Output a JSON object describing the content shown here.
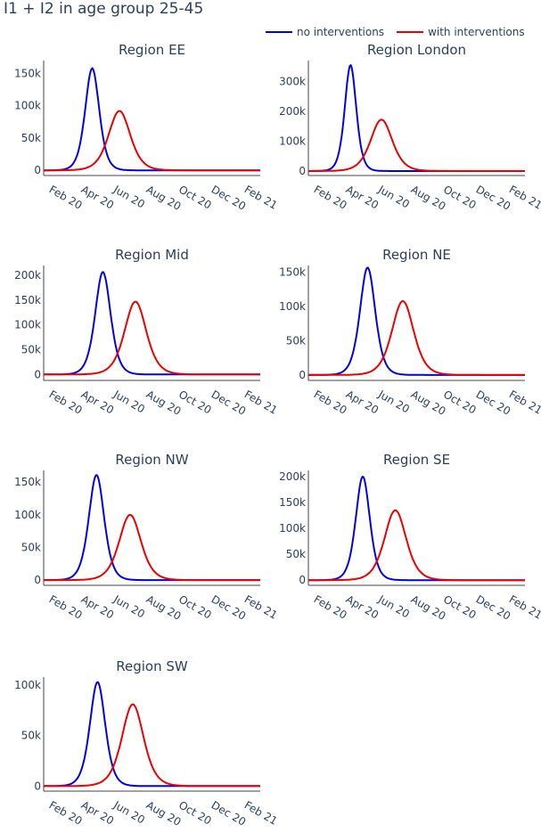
{
  "title": "I1 + I2 in age group 25-45",
  "legend": [
    {
      "name": "no interventions",
      "color": "#0000ee"
    },
    {
      "name": "with interventions",
      "color": "#ee0000"
    }
  ],
  "x_ticks": [
    "Feb 20",
    "Apr 20",
    "Jun 20",
    "Aug 20",
    "Oct 20",
    "Dec 20",
    "Feb 21"
  ],
  "chart_data": [
    {
      "type": "line",
      "title": "Region EE",
      "xlim": [
        "2020-01-20",
        "2021-03-01"
      ],
      "ylim": [
        -8000,
        170000
      ],
      "y_ticks": [
        {
          "value": 0,
          "label": "0"
        },
        {
          "value": 50000,
          "label": "50k"
        },
        {
          "value": 100000,
          "label": "100k"
        },
        {
          "value": 150000,
          "label": "150k"
        }
      ],
      "series": [
        {
          "name": "no interventions",
          "peak_date": "2020-04-20",
          "peak": 158000,
          "width_days": 11
        },
        {
          "name": "with interventions",
          "peak_date": "2020-06-10",
          "peak": 92000,
          "width_days": 17
        }
      ]
    },
    {
      "type": "line",
      "title": "Region London",
      "xlim": [
        "2020-01-20",
        "2021-03-01"
      ],
      "ylim": [
        -15000,
        370000
      ],
      "y_ticks": [
        {
          "value": 0,
          "label": "0"
        },
        {
          "value": 100000,
          "label": "100k"
        },
        {
          "value": 200000,
          "label": "200k"
        },
        {
          "value": 300000,
          "label": "300k"
        }
      ],
      "series": [
        {
          "name": "no interventions",
          "peak_date": "2020-04-08",
          "peak": 355000,
          "width_days": 9
        },
        {
          "name": "with interventions",
          "peak_date": "2020-06-05",
          "peak": 172000,
          "width_days": 17
        }
      ]
    },
    {
      "type": "line",
      "title": "Region Mid",
      "xlim": [
        "2020-01-20",
        "2021-03-01"
      ],
      "ylim": [
        -12000,
        220000
      ],
      "y_ticks": [
        {
          "value": 0,
          "label": "0"
        },
        {
          "value": 50000,
          "label": "50k"
        },
        {
          "value": 100000,
          "label": "100k"
        },
        {
          "value": 150000,
          "label": "150k"
        },
        {
          "value": 200000,
          "label": "200k"
        }
      ],
      "series": [
        {
          "name": "no interventions",
          "peak_date": "2020-05-10",
          "peak": 207000,
          "width_days": 12
        },
        {
          "name": "with interventions",
          "peak_date": "2020-07-10",
          "peak": 147000,
          "width_days": 17
        }
      ]
    },
    {
      "type": "line",
      "title": "Region NE",
      "xlim": [
        "2020-01-20",
        "2021-03-01"
      ],
      "ylim": [
        -8000,
        160000
      ],
      "y_ticks": [
        {
          "value": 0,
          "label": "0"
        },
        {
          "value": 50000,
          "label": "50k"
        },
        {
          "value": 100000,
          "label": "100k"
        },
        {
          "value": 150000,
          "label": "150k"
        }
      ],
      "series": [
        {
          "name": "no interventions",
          "peak_date": "2020-05-10",
          "peak": 157000,
          "width_days": 12
        },
        {
          "name": "with interventions",
          "peak_date": "2020-07-15",
          "peak": 108000,
          "width_days": 17
        }
      ]
    },
    {
      "type": "line",
      "title": "Region NW",
      "xlim": [
        "2020-01-20",
        "2021-03-01"
      ],
      "ylim": [
        -8000,
        168000
      ],
      "y_ticks": [
        {
          "value": 0,
          "label": "0"
        },
        {
          "value": 50000,
          "label": "50k"
        },
        {
          "value": 100000,
          "label": "100k"
        },
        {
          "value": 150000,
          "label": "150k"
        }
      ],
      "series": [
        {
          "name": "no interventions",
          "peak_date": "2020-04-28",
          "peak": 161000,
          "width_days": 12
        },
        {
          "name": "with interventions",
          "peak_date": "2020-06-30",
          "peak": 100000,
          "width_days": 17
        }
      ]
    },
    {
      "type": "line",
      "title": "Region SE",
      "xlim": [
        "2020-01-20",
        "2021-03-01"
      ],
      "ylim": [
        -10000,
        212000
      ],
      "y_ticks": [
        {
          "value": 0,
          "label": "0"
        },
        {
          "value": 50000,
          "label": "50k"
        },
        {
          "value": 100000,
          "label": "100k"
        },
        {
          "value": 150000,
          "label": "150k"
        },
        {
          "value": 200000,
          "label": "200k"
        }
      ],
      "series": [
        {
          "name": "no interventions",
          "peak_date": "2020-05-01",
          "peak": 200000,
          "width_days": 11
        },
        {
          "name": "with interventions",
          "peak_date": "2020-07-01",
          "peak": 135000,
          "width_days": 17
        }
      ]
    },
    {
      "type": "line",
      "title": "Region SW",
      "xlim": [
        "2020-01-20",
        "2021-03-01"
      ],
      "ylim": [
        -5000,
        108000
      ],
      "y_ticks": [
        {
          "value": 0,
          "label": "0"
        },
        {
          "value": 50000,
          "label": "50k"
        },
        {
          "value": 100000,
          "label": "100k"
        }
      ],
      "series": [
        {
          "name": "no interventions",
          "peak_date": "2020-04-30",
          "peak": 103000,
          "width_days": 12
        },
        {
          "name": "with interventions",
          "peak_date": "2020-07-05",
          "peak": 81000,
          "width_days": 17
        }
      ]
    }
  ]
}
